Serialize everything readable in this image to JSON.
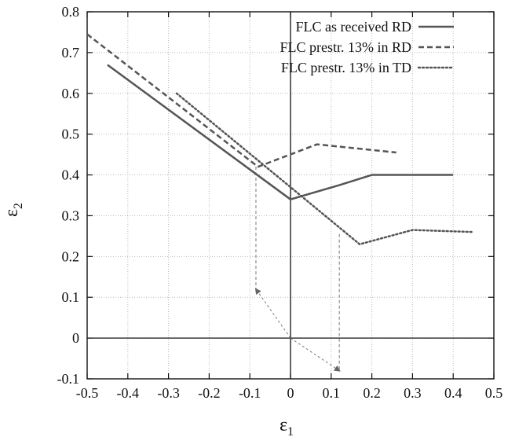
{
  "chart_data": {
    "type": "line",
    "title": "",
    "xlabel": "ε",
    "xlabel_subscript": "1",
    "ylabel": "ε",
    "ylabel_subscript": "2",
    "xlim": [
      -0.5,
      0.5
    ],
    "ylim": [
      -0.1,
      0.8
    ],
    "xticks": [
      -0.5,
      -0.4,
      -0.3,
      -0.2,
      -0.1,
      0,
      0.1,
      0.2,
      0.3,
      0.4,
      0.5
    ],
    "yticks": [
      -0.1,
      0,
      0.1,
      0.2,
      0.3,
      0.4,
      0.5,
      0.6,
      0.7,
      0.8
    ],
    "xtick_labels": [
      "-0.5",
      "-0.4",
      "-0.3",
      "-0.2",
      "-0.1",
      "0",
      "0.1",
      "0.2",
      "0.3",
      "0.4",
      "0.5"
    ],
    "ytick_labels": [
      "-0.1",
      "0",
      "0.1",
      "0.2",
      "0.3",
      "0.4",
      "0.5",
      "0.6",
      "0.7",
      "0.8"
    ],
    "grid": true,
    "legend_position": "top-right",
    "series": [
      {
        "name": "FLC as received RD",
        "style": "solid",
        "color": "#555555",
        "x": [
          -0.45,
          0.0,
          0.12,
          0.2,
          0.4
        ],
        "y": [
          0.67,
          0.34,
          0.375,
          0.4,
          0.4
        ]
      },
      {
        "name": "FLC prestr. 13% in RD",
        "style": "dashed",
        "color": "#555555",
        "x": [
          -0.5,
          -0.08,
          0.065,
          0.26
        ],
        "y": [
          0.745,
          0.42,
          0.475,
          0.455
        ]
      },
      {
        "name": "FLC prestr. 13% in TD",
        "style": "dotted",
        "color": "#555555",
        "x": [
          -0.28,
          0.0,
          0.17,
          0.3,
          0.45
        ],
        "y": [
          0.6,
          0.37,
          0.23,
          0.265,
          0.26
        ]
      }
    ],
    "annotations": [
      {
        "kind": "thin-dashed-vertical",
        "x": [
          -0.085,
          -0.085
        ],
        "y": [
          0.42,
          0.12
        ]
      },
      {
        "kind": "thin-dashed-vertical",
        "x": [
          0.12,
          0.12
        ],
        "y": [
          0.255,
          -0.08
        ]
      },
      {
        "kind": "arrow",
        "from": [
          0.0,
          0.0
        ],
        "to": [
          -0.085,
          0.12
        ]
      },
      {
        "kind": "arrow",
        "from": [
          0.0,
          0.0
        ],
        "to": [
          0.12,
          -0.08
        ]
      }
    ]
  }
}
